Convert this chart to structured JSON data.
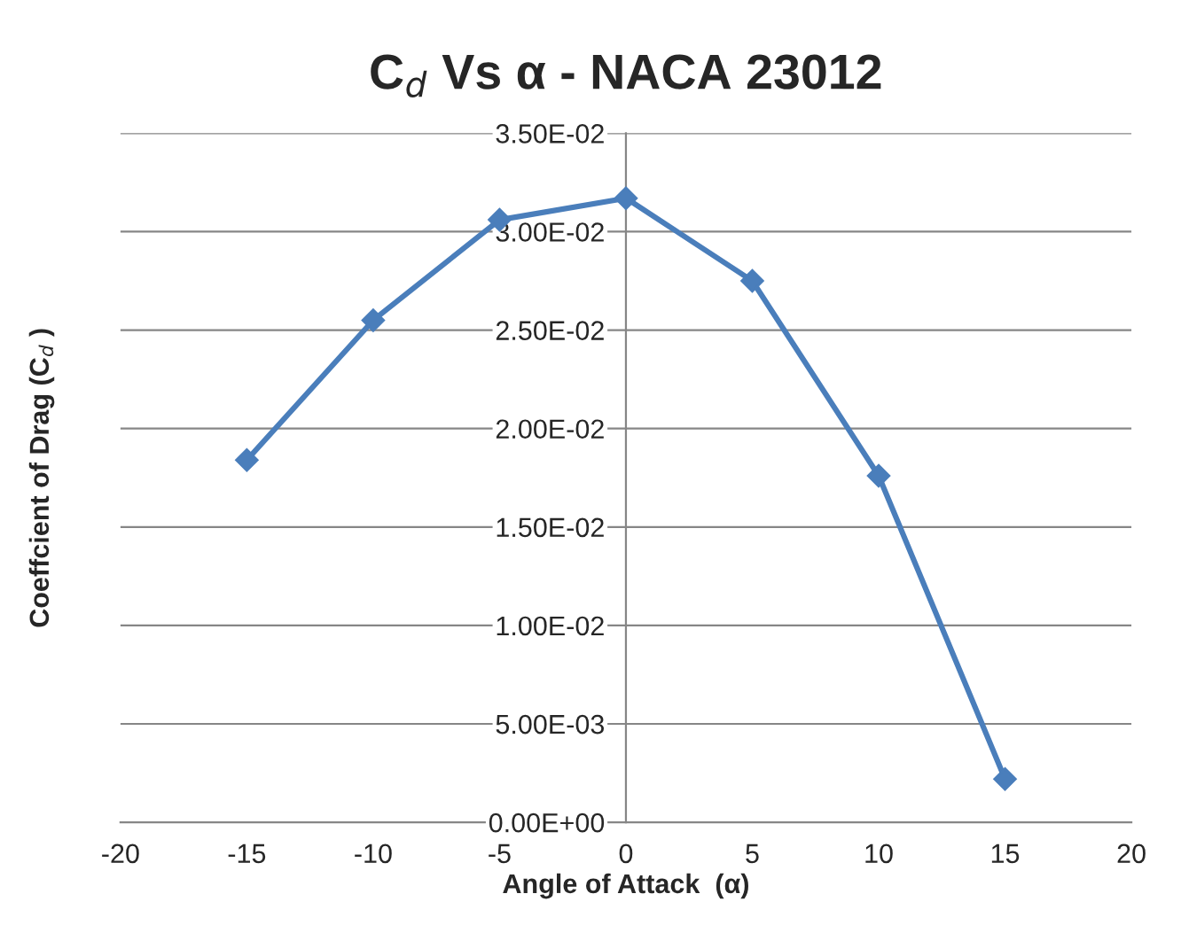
{
  "chart_data": {
    "type": "line",
    "title": "C$_{d}$ Vs α - NACA 23012",
    "xlabel": "Angle of Attack  (α)",
    "ylabel": "Coeffcient of Drag (C$_{d}$ )",
    "x": [
      -15,
      -10,
      -5,
      0,
      5,
      10,
      15
    ],
    "series": [
      {
        "color": "#4a7ebb",
        "values": [
          0.0184,
          0.0255,
          0.0306,
          0.0317,
          0.0275,
          0.0176,
          0.0022
        ]
      }
    ],
    "xlim": [
      -20,
      20
    ],
    "xticks": [
      -20,
      -15,
      -10,
      -5,
      0,
      5,
      10,
      15,
      20
    ],
    "ylim": [
      0,
      0.035
    ],
    "yticks": [
      {
        "value": 0,
        "label": "0.00E+00"
      },
      {
        "value": 0.005,
        "label": "5.00E-03"
      },
      {
        "value": 0.01,
        "label": "1.00E-02"
      },
      {
        "value": 0.015,
        "label": "1.50E-02"
      },
      {
        "value": 0.02,
        "label": "2.00E-02"
      },
      {
        "value": 0.025,
        "label": "2.50E-02"
      },
      {
        "value": 0.03,
        "label": "3.00E-02"
      },
      {
        "value": 0.035,
        "label": "3.50E-02"
      }
    ],
    "grid": "y",
    "marker": "diamond",
    "line_style": "solid",
    "legend": false
  }
}
